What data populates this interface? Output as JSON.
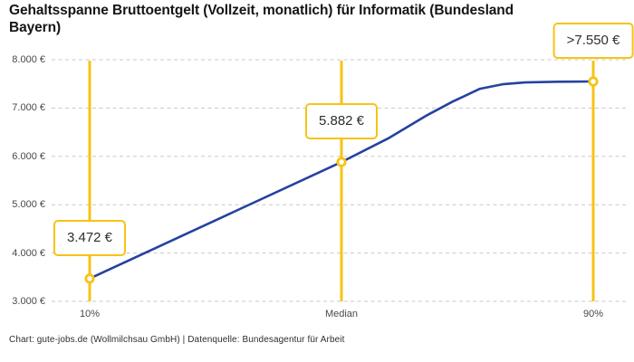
{
  "header": {
    "title": "Gehaltsspanne Bruttoentgelt (Vollzeit, monatlich) für Informatik (Bundesland Bayern)"
  },
  "footer": {
    "attribution": "Chart: gute-jobs.de (Wollmilchsau GmbH) | Datenquelle: Bundesagentur für Arbeit"
  },
  "colors": {
    "accent_yellow": "#F7C314",
    "line_blue": "#2442A0",
    "grid_gray": "#C9C9C9",
    "title_text": "#151515",
    "axis_text": "#494949",
    "footer_text": "#2E2E2E",
    "marker_fill": "#FFFFFF",
    "label_box_bg": "#FFFFFF"
  },
  "chart_data": {
    "type": "line",
    "title": "Gehaltsspanne Bruttoentgelt (Vollzeit, monatlich) für Informatik (Bundesland Bayern)",
    "xlabel": "",
    "ylabel": "",
    "categories": [
      "10%",
      "Median",
      "90%"
    ],
    "values": [
      3472,
      5882,
      7550
    ],
    "value_labels": [
      "3.472 €",
      "5.882 €",
      ">7.550 €"
    ],
    "ylim": [
      3000,
      8000
    ],
    "yticks": [
      {
        "value": 3000,
        "label": "3.000 €"
      },
      {
        "value": 4000,
        "label": "4.000 €"
      },
      {
        "value": 5000,
        "label": "5.000 €"
      },
      {
        "value": 6000,
        "label": "6.000 €"
      },
      {
        "value": 7000,
        "label": "7.000 €"
      },
      {
        "value": 8000,
        "label": "8.000 €"
      }
    ],
    "grid": "horizontal-dashed",
    "legend": "none",
    "curve_samples": [
      [
        0,
        3472
      ],
      [
        0.25,
        4677
      ],
      [
        0.5,
        5882
      ],
      [
        0.595,
        6383
      ],
      [
        0.667,
        6835
      ],
      [
        0.721,
        7135
      ],
      [
        0.775,
        7398
      ],
      [
        0.82,
        7492
      ],
      [
        0.865,
        7530
      ],
      [
        0.93,
        7545
      ],
      [
        1,
        7550
      ]
    ]
  }
}
